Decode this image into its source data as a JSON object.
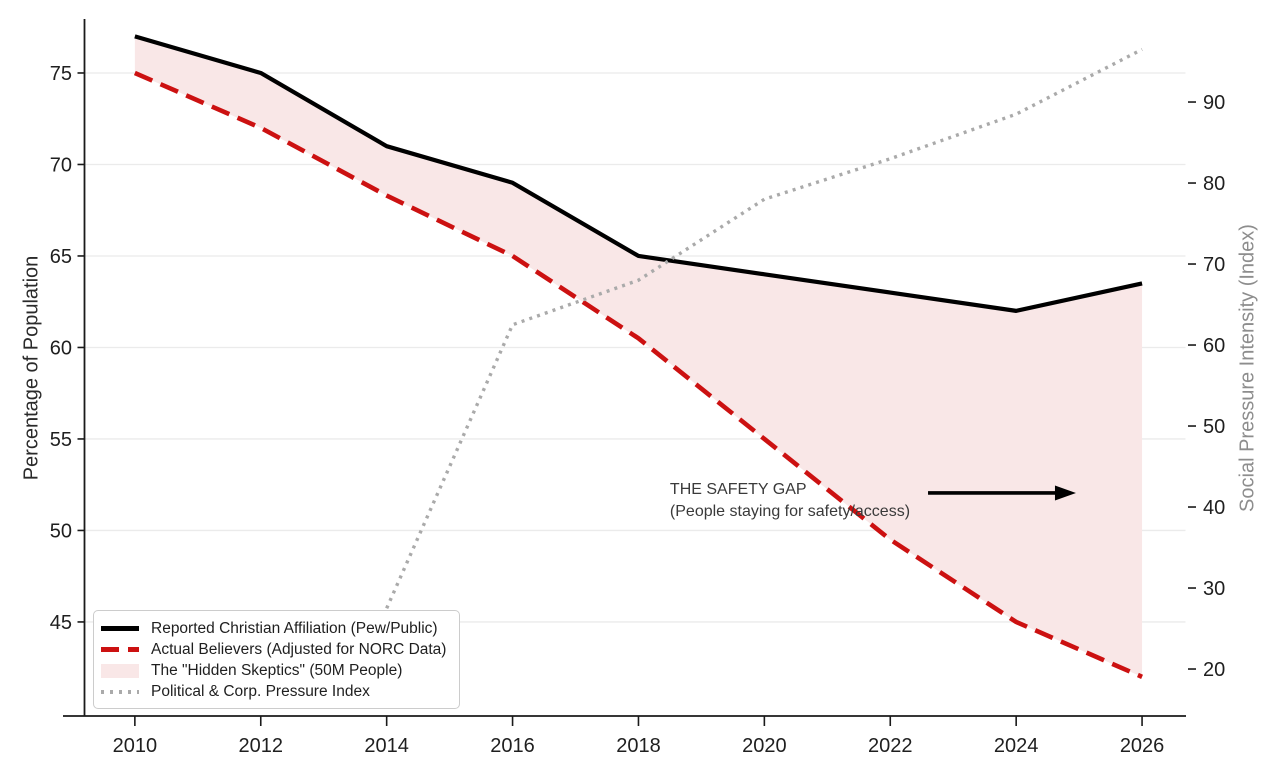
{
  "colors": {
    "background": "#ffffff",
    "grid": "#ebebeb",
    "spine": "#1a1a1a",
    "tick_label": "#1f1f1f",
    "right_axis_label": "#8d8d8d",
    "annotation_text": "#3a3a3a",
    "black_line": "#000000",
    "red_line": "#cc1111",
    "pink_fill": "#f9e7e7",
    "gray_dotted": "#aaaaaa"
  },
  "chart_data": {
    "type": "line",
    "title": "",
    "xlabel": "",
    "ylabel_left": "Percentage of Population",
    "ylabel_right": "Social Pressure Intensity (Index)",
    "grid": "horizontal",
    "legend_position": "lower-left",
    "xlim": [
      2009.2,
      2026.69
    ],
    "ylim_left": [
      39.86,
      77.95
    ],
    "ylim_right": [
      14.2,
      100.25
    ],
    "xticks": [
      2010,
      2012,
      2014,
      2016,
      2018,
      2020,
      2022,
      2024,
      2026
    ],
    "yticks_left": [
      45,
      50,
      55,
      60,
      65,
      70,
      75
    ],
    "yticks_right": [
      20,
      30,
      40,
      50,
      60,
      70,
      80,
      90
    ],
    "series": [
      {
        "id": "reported",
        "name": "Reported Christian Affiliation (Pew/Public)",
        "axis": "left",
        "line_style": "solid",
        "color": "#000000",
        "x": [
          2010,
          2012,
          2014,
          2016,
          2018,
          2020,
          2022,
          2024,
          2026
        ],
        "values": [
          77,
          75,
          71,
          69,
          65,
          64,
          63,
          62,
          63.5
        ]
      },
      {
        "id": "actual",
        "name": "Actual Believers (Adjusted for NORC Data)",
        "axis": "left",
        "line_style": "dashed",
        "color": "#cc1111",
        "x": [
          2010,
          2012,
          2014,
          2016,
          2018,
          2020,
          2022,
          2024,
          2026
        ],
        "values": [
          75,
          72,
          68.3,
          65,
          60.5,
          55,
          49.5,
          45,
          42
        ]
      },
      {
        "id": "pressure",
        "name": "Political & Corp. Pressure Index",
        "axis": "right",
        "line_style": "dotted",
        "color": "#aaaaaa",
        "x": [
          2014,
          2016,
          2018,
          2020,
          2022,
          2024,
          2026
        ],
        "values": [
          27.5,
          62.5,
          68,
          78,
          83,
          88.5,
          96.5
        ]
      }
    ],
    "area": {
      "id": "hidden-skeptics",
      "name": "The \"Hidden Skeptics\" (50M People)",
      "between": [
        "reported",
        "actual"
      ],
      "color": "#f9e7e7"
    },
    "annotation": {
      "line1": "THE SAFETY GAP",
      "line2": "(People staying for safety/access)",
      "x": 2018.5,
      "y": 52.8,
      "arrow": {
        "x_start": 2022.6,
        "x_end": 2024.95,
        "y": 52.05,
        "color": "#000000"
      }
    },
    "legend_entries": [
      {
        "swatch": "line-solid",
        "color": "#000000",
        "label": "Reported Christian Affiliation (Pew/Public)"
      },
      {
        "swatch": "line-dashed",
        "color": "#cc1111",
        "label": "Actual Believers (Adjusted for NORC Data)"
      },
      {
        "swatch": "fill",
        "color": "#f9e7e7",
        "label": "The \"Hidden Skeptics\" (50M People)"
      },
      {
        "swatch": "line-dotted",
        "color": "#aaaaaa",
        "label": "Political & Corp. Pressure Index"
      }
    ]
  }
}
